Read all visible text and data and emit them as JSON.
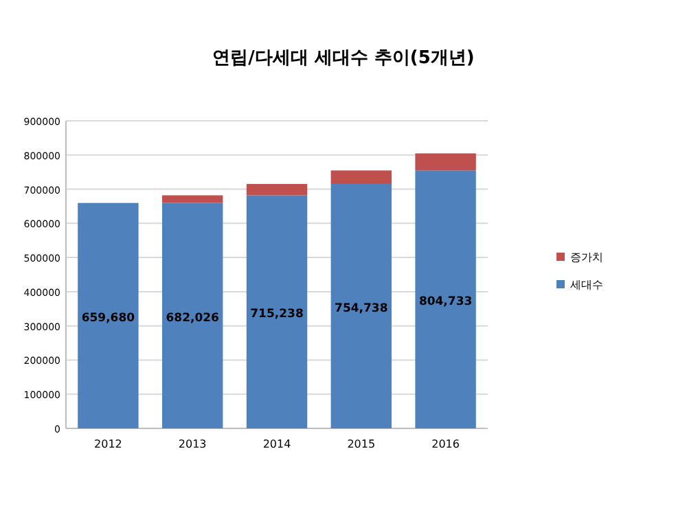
{
  "chart_data": {
    "type": "bar",
    "title": "연립/다세대 세대수 추이(5개년)",
    "categories": [
      "2012",
      "2013",
      "2014",
      "2015",
      "2016"
    ],
    "stacked": true,
    "series": [
      {
        "name": "세대수",
        "color": "#4f81bd",
        "values": [
          659680,
          659680,
          682026,
          715238,
          754738
        ]
      },
      {
        "name": "증가치",
        "color": "#c0504d",
        "values": [
          null,
          22346,
          33212,
          39500,
          49995
        ]
      }
    ],
    "totals": [
      "659,680",
      "682,026",
      "715,238",
      "754,738",
      "804,733"
    ],
    "ylim": [
      0,
      900000
    ],
    "yticks": [
      0,
      100000,
      200000,
      300000,
      400000,
      500000,
      600000,
      700000,
      800000,
      900000
    ],
    "grid": "y",
    "legend": "right"
  }
}
